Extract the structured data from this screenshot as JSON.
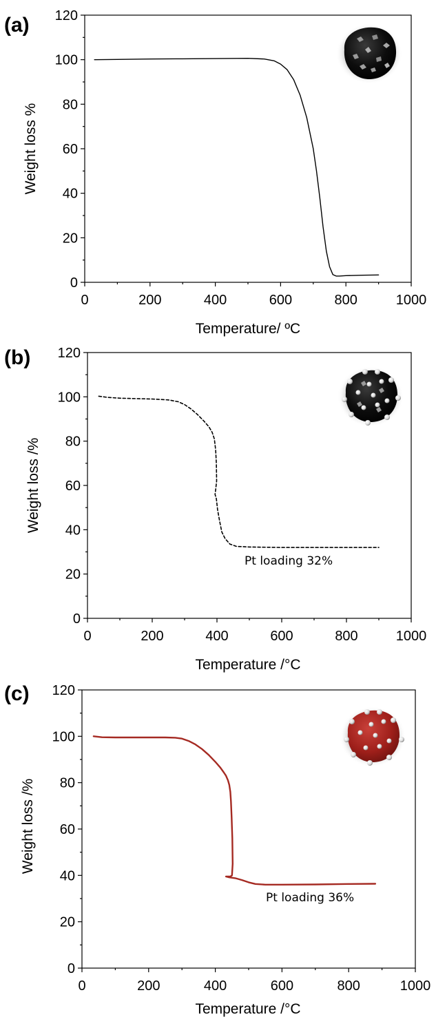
{
  "chart_data": [
    {
      "type": "line",
      "panel_label": "(a)",
      "xlabel": "Temperature/ ºC",
      "ylabel": "Weight loss %",
      "xlim": [
        0,
        1000
      ],
      "ylim": [
        0,
        120
      ],
      "xticks": [
        0,
        200,
        400,
        600,
        800,
        1000
      ],
      "yticks": [
        0,
        20,
        40,
        60,
        80,
        100,
        120
      ],
      "grid": false,
      "annotation": "",
      "series": [
        {
          "color": "#000000",
          "style": "solid",
          "x": [
            30,
            100,
            200,
            300,
            400,
            500,
            550,
            580,
            600,
            620,
            640,
            660,
            680,
            700,
            710,
            720,
            730,
            740,
            750,
            760,
            770,
            780,
            800,
            850,
            900
          ],
          "y": [
            100,
            100.1,
            100.3,
            100.4,
            100.5,
            100.6,
            100.3,
            99.5,
            98,
            95.5,
            91,
            84,
            74,
            60,
            50,
            38,
            25,
            14,
            7,
            3.5,
            2.8,
            2.8,
            3,
            3.2,
            3.3
          ]
        }
      ],
      "illustration": "black-particle-with-grey-flakes"
    },
    {
      "type": "line",
      "panel_label": "(b)",
      "xlabel": "Temperature /°C",
      "ylabel": "Weight loss /%",
      "xlim": [
        0,
        1000
      ],
      "ylim": [
        0,
        120
      ],
      "xticks": [
        0,
        200,
        400,
        600,
        800,
        1000
      ],
      "yticks": [
        0,
        20,
        40,
        60,
        80,
        100,
        120
      ],
      "grid": false,
      "annotation": "Pt loading 32%",
      "series": [
        {
          "color": "#000000",
          "style": "dashed",
          "x": [
            35,
            60,
            100,
            150,
            200,
            250,
            280,
            300,
            320,
            340,
            360,
            375,
            385,
            392,
            396,
            398,
            399,
            396,
            394,
            398,
            402,
            408,
            415,
            425,
            440,
            460,
            500,
            600,
            700,
            800,
            900
          ],
          "y": [
            100.3,
            99.8,
            99.4,
            99.2,
            99,
            98.6,
            97.8,
            96.5,
            94.5,
            92,
            89,
            86.5,
            84,
            81,
            76,
            70,
            62,
            58,
            56,
            54,
            49,
            44,
            39,
            36,
            33.5,
            32.5,
            32.2,
            32,
            32,
            32,
            32
          ]
        }
      ],
      "illustration": "black-particle-with-white-spheres"
    },
    {
      "type": "line",
      "panel_label": "(c)",
      "xlabel": "Temperature /°C",
      "ylabel": "Weight loss /%",
      "xlim": [
        0,
        1000
      ],
      "ylim": [
        0,
        120
      ],
      "xticks": [
        0,
        200,
        400,
        600,
        800,
        1000
      ],
      "yticks": [
        0,
        20,
        40,
        60,
        80,
        100,
        120
      ],
      "grid": false,
      "annotation": "Pt loading 36%",
      "series": [
        {
          "color": "#a52a22",
          "style": "solid",
          "x": [
            35,
            60,
            100,
            150,
            200,
            250,
            280,
            300,
            320,
            340,
            360,
            380,
            400,
            415,
            425,
            432,
            438,
            442,
            445,
            447,
            449,
            451,
            452,
            450,
            445,
            432,
            440,
            460,
            480,
            500,
            520,
            550,
            600,
            700,
            800,
            880
          ],
          "y": [
            100,
            99.6,
            99.5,
            99.5,
            99.5,
            99.5,
            99.4,
            99,
            98,
            96.5,
            94.5,
            92,
            89,
            86.5,
            84.5,
            83,
            81,
            79,
            76,
            72,
            65,
            56,
            45,
            40,
            39.5,
            39.5,
            39.2,
            38.8,
            38,
            37,
            36.3,
            36,
            36,
            36.1,
            36.3,
            36.4
          ]
        }
      ],
      "illustration": "red-particle-with-white-spheres"
    }
  ]
}
